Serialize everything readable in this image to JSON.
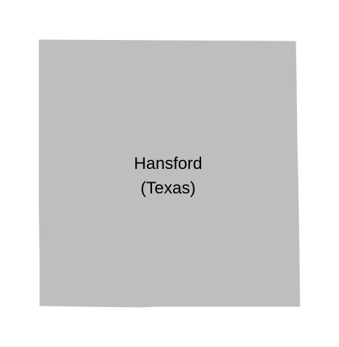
{
  "map": {
    "region_name": "Hansford",
    "region_qualifier": "(Texas)",
    "fill_color": "#bebebe",
    "background_color": "#ffffff",
    "label_color": "#000000"
  }
}
